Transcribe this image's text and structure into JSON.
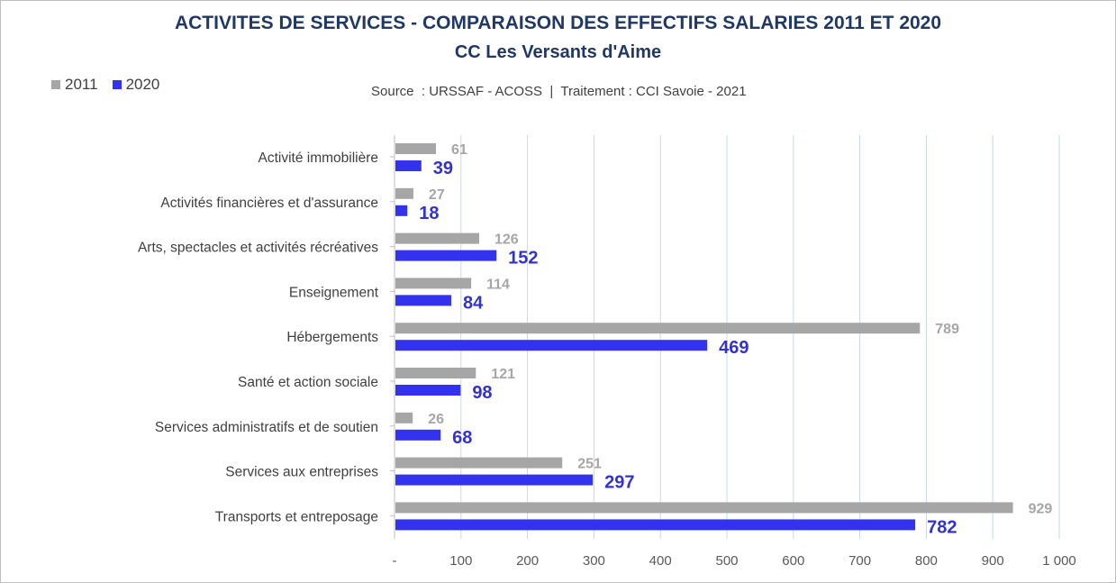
{
  "chart_data": {
    "type": "bar",
    "orientation": "horizontal",
    "title": "ACTIVITES DE SERVICES - COMPARAISON DES EFFECTIFS SALARIES 2011 ET 2020",
    "subtitle": "CC Les Versants d'Aime",
    "source": "Source  : URSSAF - ACOSS  |  Traitement : CCI Savoie - 2021",
    "categories": [
      "Activité immobilière",
      "Activités financières et d'assurance",
      "Arts, spectacles et activités récréatives",
      "Enseignement",
      "Hébergements",
      "Santé et action sociale",
      "Services administratifs et de soutien",
      "Services aux entreprises",
      "Transports et entreposage"
    ],
    "series": [
      {
        "name": "2011",
        "color": "#a6a6a6",
        "values": [
          61,
          27,
          126,
          114,
          789,
          121,
          26,
          251,
          929
        ]
      },
      {
        "name": "2020",
        "color": "#3333ee",
        "values": [
          39,
          18,
          152,
          84,
          469,
          98,
          68,
          297,
          782
        ]
      }
    ],
    "xlim": [
      0,
      1000
    ],
    "xticks": [
      0,
      100,
      200,
      300,
      400,
      500,
      600,
      700,
      800,
      900,
      1000
    ],
    "xtick_labels": [
      "-",
      "100",
      "200",
      "300",
      "400",
      "500",
      "600",
      "700",
      "800",
      "900",
      "1 000"
    ],
    "grid": true,
    "legend_position": "top-left",
    "label_colors": {
      "2011": "#a6a6a6",
      "2020": "#3333cc"
    }
  }
}
